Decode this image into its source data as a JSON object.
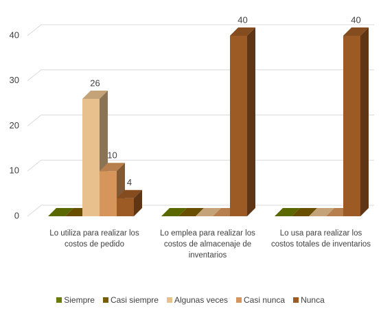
{
  "chart_data": {
    "type": "bar3d",
    "categories": [
      "Lo utiliza para realizar los costos de pedido",
      "Lo emplea para  realizar los costos de almacenaje de inventarios",
      "Lo usa para  realizar los costos totales de inventarios"
    ],
    "series": [
      {
        "name": "Siempre",
        "color": "#6b7a00",
        "values": [
          0,
          0,
          0
        ]
      },
      {
        "name": "Casi siempre",
        "color": "#7a5c00",
        "values": [
          0,
          0,
          0
        ]
      },
      {
        "name": "Algunas veces",
        "color": "#e8c08e",
        "values": [
          26,
          0,
          0
        ]
      },
      {
        "name": "Casi nunca",
        "color": "#d6955b",
        "values": [
          10,
          0,
          0
        ]
      },
      {
        "name": "Nunca",
        "color": "#9c5a24",
        "values": [
          4,
          40,
          40
        ]
      }
    ],
    "ylim": [
      0,
      40
    ],
    "yticks": [
      0,
      10,
      20,
      30,
      40
    ],
    "grid": true,
    "legend": "bottom"
  }
}
